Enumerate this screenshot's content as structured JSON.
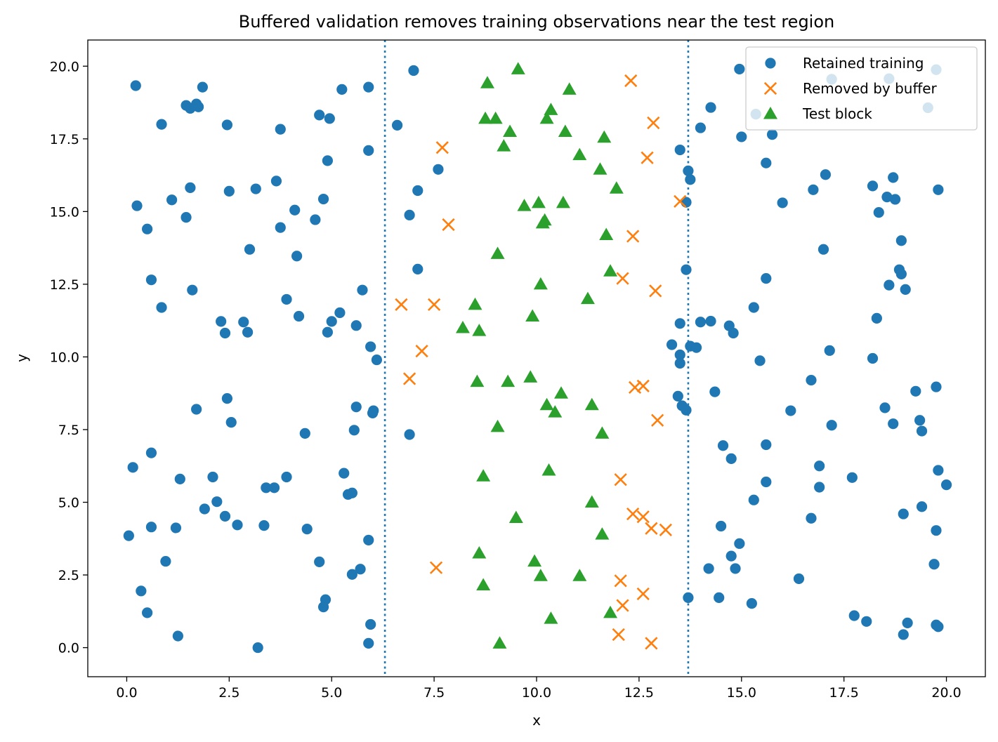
{
  "chart_data": {
    "type": "scatter",
    "title": "Buffered validation removes training observations near the test region",
    "xlabel": "x",
    "ylabel": "y",
    "xlim": [
      -0.95,
      20.95
    ],
    "ylim": [
      -1.0,
      20.9
    ],
    "xticks": [
      0.0,
      2.5,
      5.0,
      7.5,
      10.0,
      12.5,
      15.0,
      17.5,
      20.0
    ],
    "xtick_labels": [
      "0.0",
      "2.5",
      "5.0",
      "7.5",
      "10.0",
      "12.5",
      "15.0",
      "17.5",
      "20.0"
    ],
    "yticks": [
      0.0,
      2.5,
      5.0,
      7.5,
      10.0,
      12.5,
      15.0,
      17.5,
      20.0
    ],
    "ytick_labels": [
      "0.0",
      "2.5",
      "5.0",
      "7.5",
      "10.0",
      "12.5",
      "15.0",
      "17.5",
      "20.0"
    ],
    "grid": false,
    "legend_position": "top-right",
    "buffer_lines_x": [
      6.3,
      13.7
    ],
    "buffer_line_color": "#1f77b4",
    "series": [
      {
        "name": "Retained training",
        "marker": "circle",
        "color": "#1f77b4",
        "points": [
          [
            0.22,
            19.33
          ],
          [
            1.45,
            18.65
          ],
          [
            1.55,
            18.55
          ],
          [
            1.7,
            18.7
          ],
          [
            1.75,
            18.6
          ],
          [
            1.85,
            19.28
          ],
          [
            0.85,
            18.0
          ],
          [
            2.45,
            17.98
          ],
          [
            3.75,
            17.83
          ],
          [
            4.7,
            18.32
          ],
          [
            4.95,
            18.2
          ],
          [
            5.25,
            19.2
          ],
          [
            5.9,
            19.28
          ],
          [
            7.0,
            19.85
          ],
          [
            0.25,
            15.2
          ],
          [
            1.1,
            15.4
          ],
          [
            1.55,
            15.82
          ],
          [
            2.5,
            15.7
          ],
          [
            3.15,
            15.78
          ],
          [
            3.65,
            16.05
          ],
          [
            4.1,
            15.05
          ],
          [
            4.8,
            15.43
          ],
          [
            4.6,
            14.72
          ],
          [
            4.9,
            16.75
          ],
          [
            5.9,
            17.1
          ],
          [
            6.6,
            17.97
          ],
          [
            7.6,
            16.45
          ],
          [
            7.1,
            15.72
          ],
          [
            6.9,
            14.88
          ],
          [
            0.5,
            14.4
          ],
          [
            1.45,
            14.8
          ],
          [
            3.75,
            14.45
          ],
          [
            3.0,
            13.7
          ],
          [
            4.15,
            13.47
          ],
          [
            0.6,
            12.65
          ],
          [
            1.6,
            12.3
          ],
          [
            0.85,
            11.7
          ],
          [
            2.3,
            11.22
          ],
          [
            2.4,
            10.82
          ],
          [
            2.85,
            11.2
          ],
          [
            2.95,
            10.85
          ],
          [
            3.9,
            11.98
          ],
          [
            4.2,
            11.4
          ],
          [
            4.9,
            10.85
          ],
          [
            5.0,
            11.22
          ],
          [
            5.2,
            11.52
          ],
          [
            5.6,
            11.08
          ],
          [
            5.75,
            12.3
          ],
          [
            7.1,
            13.02
          ],
          [
            5.95,
            10.35
          ],
          [
            6.1,
            9.9
          ],
          [
            0.15,
            6.2
          ],
          [
            0.6,
            6.7
          ],
          [
            1.7,
            8.2
          ],
          [
            2.45,
            8.57
          ],
          [
            2.55,
            7.75
          ],
          [
            4.35,
            7.37
          ],
          [
            5.6,
            8.28
          ],
          [
            6.0,
            8.07
          ],
          [
            6.02,
            8.15
          ],
          [
            5.55,
            7.48
          ],
          [
            6.9,
            7.33
          ],
          [
            1.3,
            5.8
          ],
          [
            2.1,
            5.87
          ],
          [
            1.9,
            4.77
          ],
          [
            2.2,
            5.02
          ],
          [
            2.4,
            4.52
          ],
          [
            2.7,
            4.22
          ],
          [
            3.4,
            5.5
          ],
          [
            3.6,
            5.5
          ],
          [
            3.9,
            5.87
          ],
          [
            5.3,
            6.0
          ],
          [
            5.4,
            5.27
          ],
          [
            5.5,
            5.32
          ],
          [
            0.05,
            3.85
          ],
          [
            0.6,
            4.15
          ],
          [
            1.2,
            4.12
          ],
          [
            3.35,
            4.2
          ],
          [
            4.4,
            4.08
          ],
          [
            0.95,
            2.97
          ],
          [
            0.35,
            1.95
          ],
          [
            0.5,
            1.2
          ],
          [
            1.25,
            0.4
          ],
          [
            3.2,
            0.0
          ],
          [
            4.7,
            2.95
          ],
          [
            4.85,
            1.65
          ],
          [
            4.8,
            1.4
          ],
          [
            5.5,
            2.52
          ],
          [
            5.7,
            2.7
          ],
          [
            5.9,
            3.7
          ],
          [
            5.95,
            0.8
          ],
          [
            5.9,
            0.15
          ],
          [
            13.5,
            17.12
          ],
          [
            13.7,
            16.4
          ],
          [
            13.75,
            16.1
          ],
          [
            13.65,
            15.32
          ],
          [
            14.25,
            18.58
          ],
          [
            14.0,
            17.88
          ],
          [
            14.95,
            19.9
          ],
          [
            15.0,
            17.57
          ],
          [
            15.35,
            18.35
          ],
          [
            15.75,
            17.65
          ],
          [
            15.6,
            16.67
          ],
          [
            16.0,
            15.3
          ],
          [
            16.75,
            15.75
          ],
          [
            17.05,
            16.27
          ],
          [
            17.2,
            19.55
          ],
          [
            18.2,
            15.88
          ],
          [
            18.55,
            15.5
          ],
          [
            18.7,
            16.17
          ],
          [
            18.75,
            15.42
          ],
          [
            18.35,
            14.97
          ],
          [
            18.6,
            19.57
          ],
          [
            19.55,
            18.57
          ],
          [
            19.75,
            19.88
          ],
          [
            19.8,
            15.75
          ],
          [
            13.65,
            13.0
          ],
          [
            17.0,
            13.7
          ],
          [
            15.6,
            12.7
          ],
          [
            18.6,
            12.47
          ],
          [
            18.9,
            14.0
          ],
          [
            18.85,
            13.0
          ],
          [
            18.9,
            12.85
          ],
          [
            19.0,
            12.32
          ],
          [
            13.5,
            11.15
          ],
          [
            14.0,
            11.2
          ],
          [
            14.25,
            11.23
          ],
          [
            14.7,
            11.07
          ],
          [
            14.8,
            10.82
          ],
          [
            15.3,
            11.7
          ],
          [
            13.3,
            10.42
          ],
          [
            13.5,
            10.07
          ],
          [
            13.5,
            9.78
          ],
          [
            13.75,
            10.37
          ],
          [
            13.9,
            10.32
          ],
          [
            15.45,
            9.87
          ],
          [
            17.15,
            10.22
          ],
          [
            18.2,
            9.95
          ],
          [
            18.3,
            11.33
          ],
          [
            13.45,
            8.65
          ],
          [
            13.55,
            8.32
          ],
          [
            13.65,
            8.17
          ],
          [
            14.35,
            8.8
          ],
          [
            16.2,
            8.15
          ],
          [
            16.7,
            9.2
          ],
          [
            18.5,
            8.25
          ],
          [
            18.7,
            7.7
          ],
          [
            19.25,
            8.82
          ],
          [
            19.35,
            7.82
          ],
          [
            19.4,
            7.45
          ],
          [
            19.75,
            8.97
          ],
          [
            14.55,
            6.95
          ],
          [
            14.75,
            6.5
          ],
          [
            15.6,
            6.98
          ],
          [
            17.2,
            7.65
          ],
          [
            16.9,
            6.25
          ],
          [
            16.9,
            5.52
          ],
          [
            17.7,
            5.85
          ],
          [
            15.6,
            5.7
          ],
          [
            15.3,
            5.08
          ],
          [
            19.8,
            6.1
          ],
          [
            20.0,
            5.6
          ],
          [
            19.4,
            4.85
          ],
          [
            18.95,
            4.6
          ],
          [
            19.75,
            4.03
          ],
          [
            14.5,
            4.18
          ],
          [
            14.75,
            3.15
          ],
          [
            14.95,
            3.58
          ],
          [
            14.85,
            2.72
          ],
          [
            14.2,
            2.72
          ],
          [
            14.45,
            1.72
          ],
          [
            13.7,
            1.72
          ],
          [
            15.25,
            1.52
          ],
          [
            16.4,
            2.37
          ],
          [
            16.7,
            4.45
          ],
          [
            17.75,
            1.1
          ],
          [
            18.05,
            0.9
          ],
          [
            19.7,
            2.87
          ],
          [
            19.05,
            0.85
          ],
          [
            18.95,
            0.45
          ],
          [
            19.75,
            0.78
          ],
          [
            19.8,
            0.72
          ]
        ]
      },
      {
        "name": "Removed by buffer",
        "marker": "x",
        "color": "#ff7f0e",
        "points": [
          [
            12.3,
            19.5
          ],
          [
            12.85,
            18.05
          ],
          [
            7.7,
            17.2
          ],
          [
            12.7,
            16.85
          ],
          [
            13.5,
            15.35
          ],
          [
            7.85,
            14.55
          ],
          [
            12.35,
            14.15
          ],
          [
            12.1,
            12.7
          ],
          [
            12.9,
            12.27
          ],
          [
            6.7,
            11.8
          ],
          [
            7.5,
            11.8
          ],
          [
            7.2,
            10.2
          ],
          [
            6.9,
            9.25
          ],
          [
            12.4,
            8.95
          ],
          [
            12.6,
            9.0
          ],
          [
            12.95,
            7.82
          ],
          [
            12.05,
            5.78
          ],
          [
            12.35,
            4.6
          ],
          [
            12.6,
            4.5
          ],
          [
            12.8,
            4.1
          ],
          [
            13.15,
            4.05
          ],
          [
            7.55,
            2.75
          ],
          [
            12.05,
            2.3
          ],
          [
            12.6,
            1.85
          ],
          [
            12.1,
            1.45
          ],
          [
            12.0,
            0.45
          ],
          [
            12.8,
            0.15
          ]
        ]
      },
      {
        "name": "Test block",
        "marker": "triangle",
        "color": "#2ca02c",
        "points": [
          [
            9.55,
            19.9
          ],
          [
            8.8,
            19.42
          ],
          [
            8.75,
            18.2
          ],
          [
            9.0,
            18.2
          ],
          [
            9.35,
            17.75
          ],
          [
            9.2,
            17.25
          ],
          [
            10.35,
            18.5
          ],
          [
            10.25,
            18.2
          ],
          [
            10.8,
            19.2
          ],
          [
            10.7,
            17.75
          ],
          [
            11.65,
            17.55
          ],
          [
            11.05,
            16.95
          ],
          [
            11.55,
            16.45
          ],
          [
            11.95,
            15.8
          ],
          [
            9.7,
            15.2
          ],
          [
            10.05,
            15.3
          ],
          [
            10.65,
            15.3
          ],
          [
            10.15,
            14.6
          ],
          [
            10.2,
            14.7
          ],
          [
            11.7,
            14.2
          ],
          [
            9.05,
            13.55
          ],
          [
            11.8,
            12.95
          ],
          [
            10.1,
            12.5
          ],
          [
            11.25,
            12.0
          ],
          [
            8.5,
            11.8
          ],
          [
            8.2,
            11.0
          ],
          [
            8.6,
            10.9
          ],
          [
            9.9,
            11.4
          ],
          [
            8.55,
            9.15
          ],
          [
            9.3,
            9.15
          ],
          [
            9.85,
            9.3
          ],
          [
            10.6,
            8.75
          ],
          [
            10.25,
            8.35
          ],
          [
            10.45,
            8.1
          ],
          [
            11.35,
            8.35
          ],
          [
            11.6,
            7.37
          ],
          [
            9.05,
            7.6
          ],
          [
            8.7,
            5.9
          ],
          [
            10.3,
            6.1
          ],
          [
            9.5,
            4.47
          ],
          [
            11.35,
            5.0
          ],
          [
            11.6,
            3.9
          ],
          [
            8.6,
            3.25
          ],
          [
            8.7,
            2.15
          ],
          [
            9.95,
            2.97
          ],
          [
            10.1,
            2.47
          ],
          [
            11.05,
            2.47
          ],
          [
            10.35,
            1.0
          ],
          [
            11.8,
            1.2
          ],
          [
            9.1,
            0.15
          ]
        ]
      }
    ]
  }
}
